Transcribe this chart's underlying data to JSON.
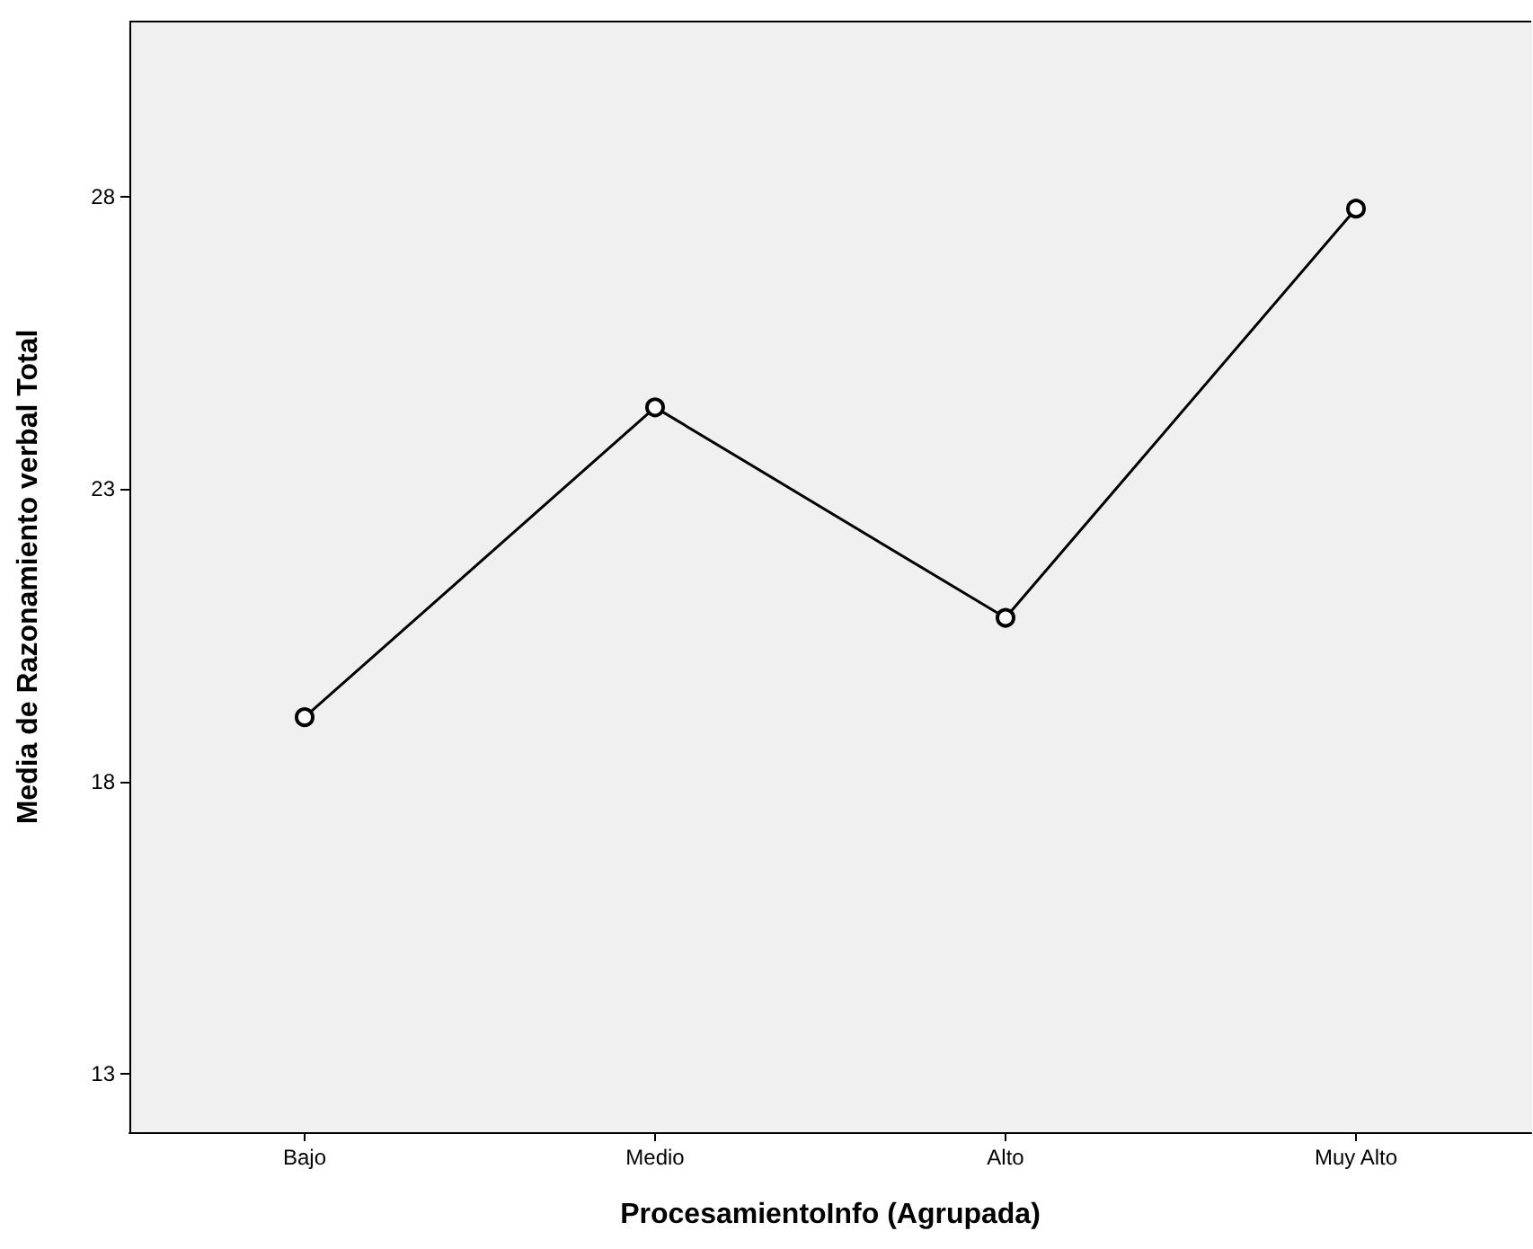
{
  "chart_data": {
    "type": "line",
    "xlabel": "ProcesamientoInfo (Agrupada)",
    "ylabel": "Media de Razonamiento verbal Total",
    "categories": [
      "Bajo",
      "Medio",
      "Alto",
      "Muy Alto"
    ],
    "series": [
      {
        "color": "#000000",
        "values": [
          19.1,
          24.4,
          20.8,
          27.8
        ]
      }
    ],
    "ylim": [
      12,
      31
    ],
    "yticks": [
      13,
      18,
      23,
      28
    ],
    "grid": false,
    "marker": "circle",
    "line_style": "solid"
  }
}
